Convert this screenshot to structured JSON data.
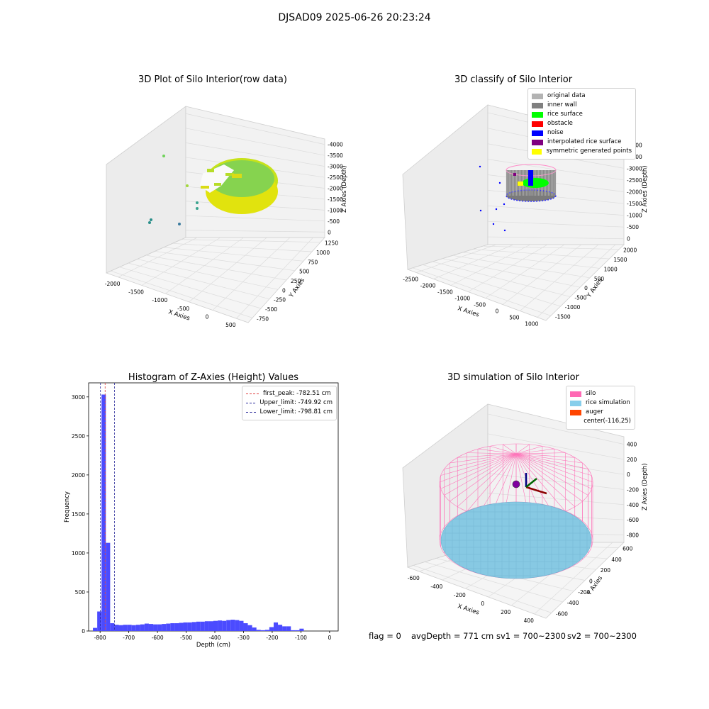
{
  "page": {
    "title": "DJSAD09 2025-06-26 20:23:24"
  },
  "chart_data": [
    {
      "type": "scatter3d",
      "title": "3D Plot of Silo Interior(row data)",
      "xlabel": "X Axies",
      "ylabel": "Y Axies",
      "zlabel": "Z Axies (Depth)",
      "x_ticks": [
        "-2000",
        "-1500",
        "-1000",
        "-500",
        "0",
        "500"
      ],
      "y_ticks": [
        "-750",
        "-500",
        "-250",
        "0",
        "250",
        "500",
        "750",
        "1000",
        "1250"
      ],
      "z_ticks": [
        "0",
        "-500",
        "-1000",
        "-1500",
        "-2000",
        "-2500",
        "-3000",
        "-3500",
        "-4000"
      ]
    },
    {
      "type": "scatter3d",
      "title": "3D classify of Silo Interior",
      "xlabel": "X Axies",
      "ylabel": "Y Axies",
      "zlabel": "Z Axies (Depth)",
      "x_ticks": [
        "-2500",
        "-2000",
        "-1500",
        "-1000",
        "-500",
        "0",
        "500",
        "1000"
      ],
      "y_ticks": [
        "-1500",
        "-1000",
        "-500",
        "0",
        "500",
        "1000",
        "1500",
        "2000"
      ],
      "z_ticks": [
        "0",
        "-500",
        "-1000",
        "-1500",
        "-2000",
        "-2500",
        "-3000",
        "-3500",
        "-4000"
      ],
      "legend": [
        {
          "label": "original data",
          "color": "#b3b3b3"
        },
        {
          "label": "inner wall",
          "color": "#808080"
        },
        {
          "label": "rice surface",
          "color": "#00ff00"
        },
        {
          "label": "obstacle",
          "color": "#ff0000"
        },
        {
          "label": "noise",
          "color": "#0000ff"
        },
        {
          "label": "interpolated rice surface",
          "color": "#800080"
        },
        {
          "label": "symmetric generated points",
          "color": "#ffff00"
        }
      ]
    },
    {
      "type": "bar",
      "title": "Histogram of Z-Axies (Height) Values",
      "xlabel": "Depth (cm)",
      "ylabel": "Frequency",
      "xlim": [
        -840,
        30
      ],
      "ylim": [
        0,
        3180
      ],
      "x_ticks": [
        -800,
        -700,
        -600,
        -500,
        -400,
        -300,
        -200,
        -100,
        0
      ],
      "y_ticks": [
        0,
        500,
        1000,
        1500,
        2000,
        2500,
        3000
      ],
      "bin_width": 15,
      "bin_start": -840,
      "values": [
        0,
        40,
        250,
        3030,
        1130,
        100,
        80,
        75,
        80,
        80,
        75,
        80,
        85,
        95,
        90,
        85,
        85,
        90,
        95,
        100,
        100,
        105,
        110,
        110,
        115,
        120,
        120,
        125,
        125,
        130,
        135,
        130,
        140,
        145,
        140,
        130,
        100,
        75,
        45,
        15,
        10,
        15,
        50,
        110,
        80,
        60,
        60,
        10,
        10,
        30,
        0
      ],
      "color": "#4b4bff",
      "lines": [
        {
          "label": "first_peak: -782.51 cm",
          "x": -782.51,
          "color": "#e04040"
        },
        {
          "label": "Upper_limit: -749.92 cm",
          "x": -749.92,
          "color": "#2a2a9a"
        },
        {
          "label": "Lower_limit: -798.81 cm",
          "x": -798.81,
          "color": "#2a2a9a"
        }
      ]
    },
    {
      "type": "surface3d",
      "title": "3D simulation of Silo Interior",
      "xlabel": "X Axies",
      "ylabel": "Y Axies",
      "zlabel": "Z Axies (Depth)",
      "x_ticks": [
        "-600",
        "-400",
        "-200",
        "0",
        "200",
        "400"
      ],
      "y_ticks": [
        "-600",
        "-400",
        "-200",
        "0",
        "200",
        "400",
        "600"
      ],
      "z_ticks": [
        "400",
        "200",
        "0",
        "-200",
        "-400",
        "-600",
        "-800"
      ],
      "legend": [
        {
          "label": "silo",
          "color": "#ff69b4"
        },
        {
          "label": "rice simulation",
          "color": "#87ceeb"
        },
        {
          "label": "auger",
          "color": "#ff4500"
        },
        {
          "label": "center(-116,25)",
          "color": ""
        }
      ]
    }
  ],
  "footer": {
    "flag": "flag = 0",
    "avg": "avgDepth = 771 cm",
    "sv1": "sv1 = 700~2300",
    "sv2": "sv2 = 700~2300"
  }
}
